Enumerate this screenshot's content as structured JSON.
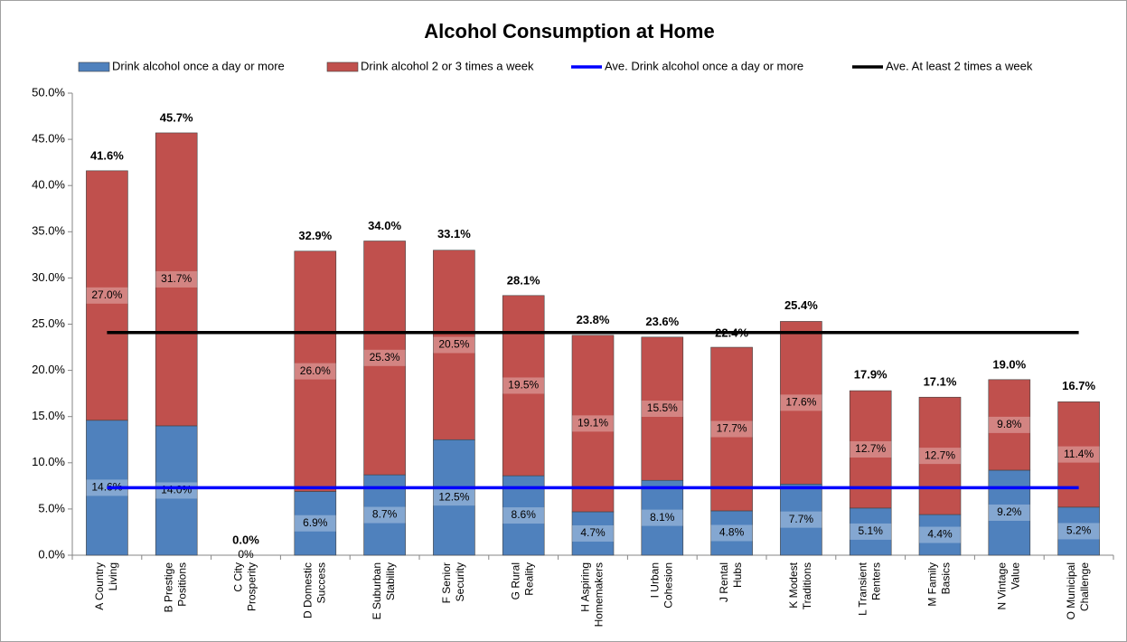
{
  "chart_data": {
    "type": "bar",
    "stacked": true,
    "title": "Alcohol Consumption at Home",
    "categories": [
      "A Country Living",
      "B Prestige Positions",
      "C City Prosperity",
      "D Domestic Success",
      "E Suburban Stability",
      "F Senior Security",
      "G Rural Reality",
      "H Aspiring Homemakers",
      "I Urban Cohesion",
      "J Rental Hubs",
      "K Modest Traditions",
      "L Transient Renters",
      "M Family Basics",
      "N Vintage Value",
      "O Municipal Challenge"
    ],
    "series": [
      {
        "name": "Drink alcohol once a day or more",
        "color": "#4f81bd",
        "values": [
          14.6,
          14.0,
          0,
          6.9,
          8.7,
          12.5,
          8.6,
          4.7,
          8.1,
          4.8,
          7.7,
          5.1,
          4.4,
          9.2,
          5.2
        ],
        "value_labels": [
          "14.6%",
          "14.0%",
          "0%",
          "6.9%",
          "8.7%",
          "12.5%",
          "8.6%",
          "4.7%",
          "8.1%",
          "4.8%",
          "7.7%",
          "5.1%",
          "4.4%",
          "9.2%",
          "5.2%"
        ]
      },
      {
        "name": "Drink alcohol 2 or 3 times a week",
        "color": "#c0504d",
        "values": [
          27.0,
          31.7,
          null,
          26.0,
          25.3,
          20.5,
          19.5,
          19.1,
          15.5,
          17.7,
          17.6,
          12.7,
          12.7,
          9.8,
          11.4
        ],
        "value_labels": [
          "27.0%",
          "31.7%",
          null,
          "26.0%",
          "25.3%",
          "20.5%",
          "19.5%",
          "19.1%",
          "15.5%",
          "17.7%",
          "17.6%",
          "12.7%",
          "12.7%",
          "9.8%",
          "11.4%"
        ]
      },
      {
        "name": "Ave. Drink alcohol once a day or more",
        "type": "line",
        "color": "#0000ff",
        "values": [
          7.3,
          7.3,
          7.3,
          7.3,
          7.3,
          7.3,
          7.3,
          7.3,
          7.3,
          7.3,
          7.3,
          7.3,
          7.3,
          7.3,
          7.3
        ]
      },
      {
        "name": "Ave. At least 2 times a week",
        "type": "line",
        "color": "#000000",
        "values": [
          24.1,
          24.1,
          24.1,
          24.1,
          24.1,
          24.1,
          24.1,
          24.1,
          24.1,
          24.1,
          24.1,
          24.1,
          24.1,
          24.1,
          24.1
        ]
      }
    ],
    "totals": {
      "values": [
        41.6,
        45.7,
        0.0,
        32.9,
        34.0,
        33.1,
        28.1,
        23.8,
        23.6,
        22.4,
        25.4,
        17.9,
        17.1,
        19.0,
        16.7
      ],
      "value_labels": [
        "41.6%",
        "45.7%",
        "0.0%",
        "32.9%",
        "34.0%",
        "33.1%",
        "28.1%",
        "23.8%",
        "23.6%",
        "22.4%",
        "25.4%",
        "17.9%",
        "17.1%",
        "19.0%",
        "16.7%"
      ]
    },
    "ylim": [
      0,
      50
    ],
    "yticks": [
      {
        "value": 0,
        "label": "0.0%"
      },
      {
        "value": 5,
        "label": "5.0%"
      },
      {
        "value": 10,
        "label": "10.0%"
      },
      {
        "value": 15,
        "label": "15.0%"
      },
      {
        "value": 20,
        "label": "20.0%"
      },
      {
        "value": 25,
        "label": "25.0%"
      },
      {
        "value": 30,
        "label": "30.0%"
      },
      {
        "value": 35,
        "label": "35.0%"
      },
      {
        "value": 40,
        "label": "40.0%"
      },
      {
        "value": 45,
        "label": "45.0%"
      },
      {
        "value": 50,
        "label": "50.0%"
      }
    ],
    "grid": false,
    "legend": "top"
  }
}
